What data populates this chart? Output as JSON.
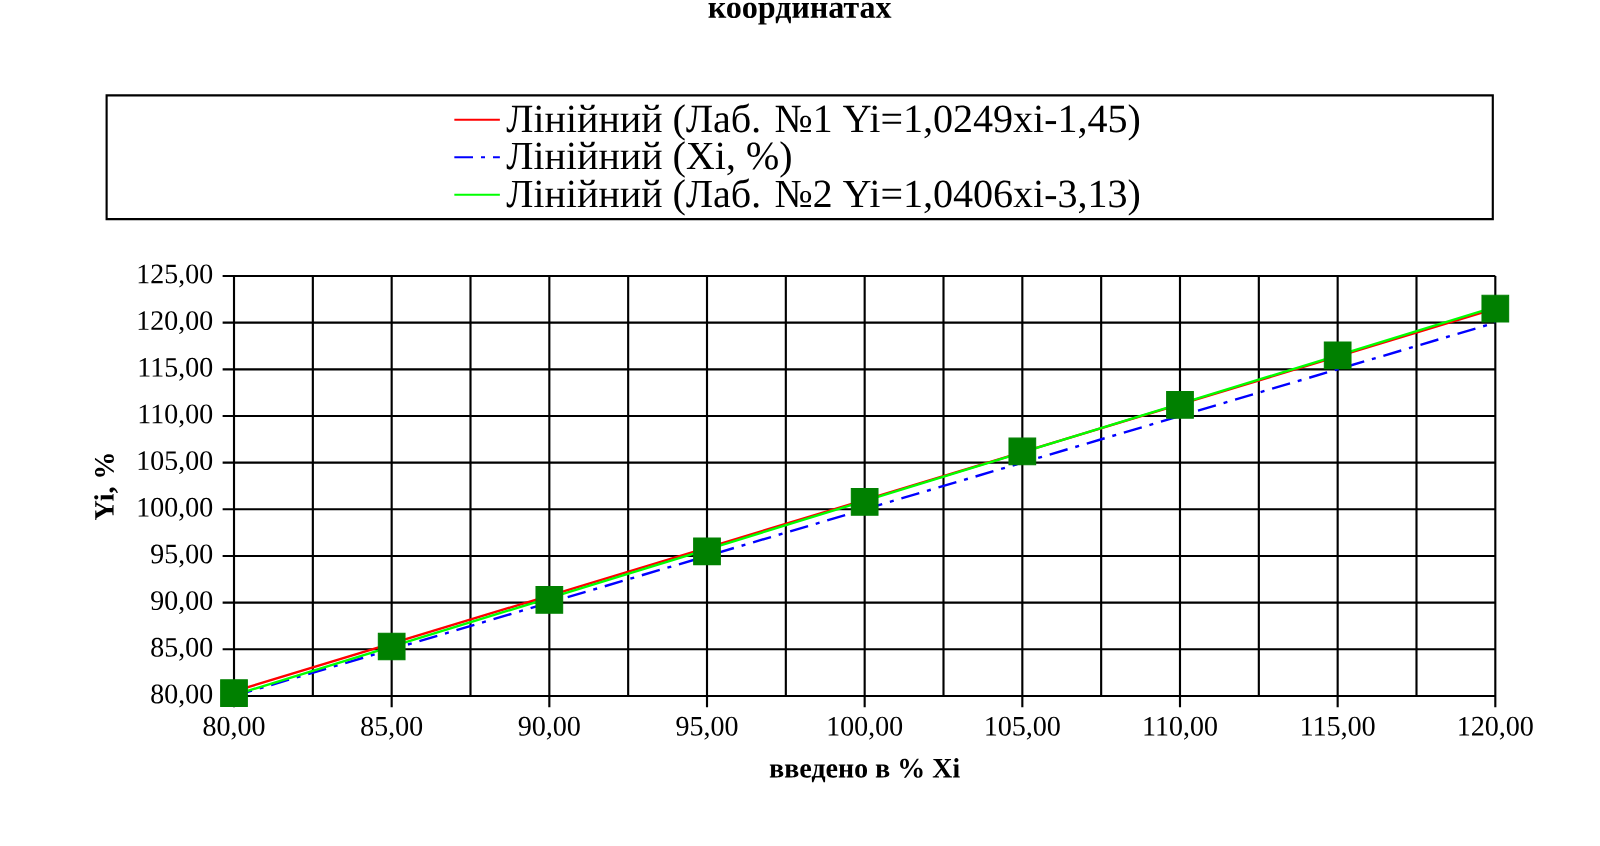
{
  "chart_data": {
    "type": "line",
    "title": "координатах",
    "xlabel": "введено в %   Xi",
    "ylabel": "Yi, %",
    "xlim": [
      80,
      120
    ],
    "ylim": [
      80,
      125
    ],
    "xticks": [
      {
        "value": 80,
        "label": "80,00"
      },
      {
        "value": 85,
        "label": "85,00"
      },
      {
        "value": 90,
        "label": "90,00"
      },
      {
        "value": 95,
        "label": "95,00"
      },
      {
        "value": 100,
        "label": "100,00"
      },
      {
        "value": 105,
        "label": "105,00"
      },
      {
        "value": 110,
        "label": "110,00"
      },
      {
        "value": 115,
        "label": "115,00"
      },
      {
        "value": 120,
        "label": "120,00"
      }
    ],
    "yticks": [
      {
        "value": 80,
        "label": "80,00"
      },
      {
        "value": 85,
        "label": "85,00"
      },
      {
        "value": 90,
        "label": "90,00"
      },
      {
        "value": 95,
        "label": "95,00"
      },
      {
        "value": 100,
        "label": "100,00"
      },
      {
        "value": 105,
        "label": "105,00"
      },
      {
        "value": 110,
        "label": "110,00"
      },
      {
        "value": 115,
        "label": "115,00"
      },
      {
        "value": 120,
        "label": "120,00"
      },
      {
        "value": 125,
        "label": "125,00"
      }
    ],
    "grid": true,
    "legend": "top",
    "series": [
      {
        "type": "scatter",
        "marker": "square",
        "color": "#008000",
        "x": [
          80,
          85,
          90,
          95,
          100,
          105,
          110,
          115,
          120
        ],
        "values": [
          80.3,
          85.3,
          90.3,
          95.5,
          100.8,
          106.2,
          111.2,
          116.5,
          121.5
        ]
      },
      {
        "type": "line",
        "name": "Лінійний (Лаб. №1 Yi=1,0249xi-1,45)",
        "color": "#ff0000",
        "line_style": "solid",
        "x": [
          80,
          120
        ],
        "values": [
          80.5,
          121.5
        ]
      },
      {
        "type": "line",
        "name": "Лінійний (Xi, %)",
        "color": "#0000ff",
        "line_style": "dashed",
        "x": [
          80,
          120
        ],
        "values": [
          80,
          120
        ]
      },
      {
        "type": "line",
        "name": "Лінійний (Лаб. №2 Yi=1,0406xi-3,13)",
        "color": "#00ff00",
        "line_style": "solid",
        "x": [
          80,
          120
        ],
        "values": [
          80.1,
          121.7
        ]
      }
    ]
  }
}
